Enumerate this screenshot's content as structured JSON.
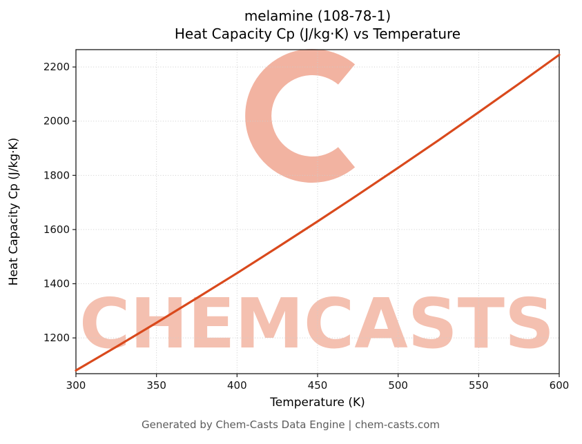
{
  "page": {
    "footer": "Generated by Chem-Casts Data Engine | chem-casts.com"
  },
  "chart_data": {
    "type": "line",
    "title": "melamine (108-78-1)",
    "subtitle": "Heat Capacity Cp (J/kg·K) vs Temperature",
    "xlabel": "Temperature (K)",
    "ylabel": "Heat Capacity Cp (J/kg·K)",
    "xlim": [
      300,
      600
    ],
    "ylim": [
      1068,
      2264
    ],
    "xticks": [
      300,
      350,
      400,
      450,
      500,
      550,
      600
    ],
    "yticks": [
      1200,
      1400,
      1600,
      1800,
      2000,
      2200
    ],
    "grid": true,
    "legend": "none",
    "series": [
      {
        "name": "Heat Capacity Cp",
        "color": "#d9491c",
        "x": [
          300,
          325,
          350,
          375,
          400,
          425,
          450,
          475,
          500,
          525,
          550,
          575,
          600
        ],
        "y": [
          1080,
          1167,
          1256,
          1347,
          1439,
          1534,
          1630,
          1728,
          1828,
          1929,
          2033,
          2138,
          2245
        ]
      }
    ],
    "watermark": {
      "text": "CHEMCASTS",
      "text_color": "#f4c0b0",
      "logo_color": "#f2b3a1"
    }
  }
}
